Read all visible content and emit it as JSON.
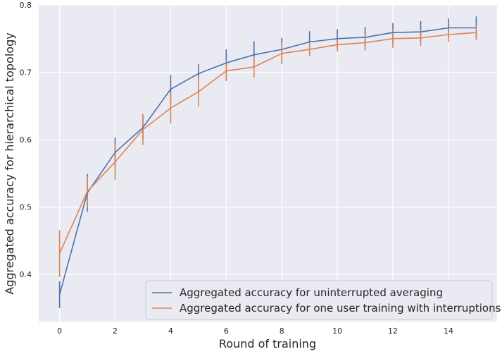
{
  "chart_data": {
    "type": "line",
    "xlabel": "Round of training",
    "ylabel": "Aggregated accuracy for hierarchical topology",
    "xlim": [
      -0.75,
      15.75
    ],
    "ylim": [
      0.33,
      0.8
    ],
    "xticks": [
      0,
      2,
      4,
      6,
      8,
      10,
      12,
      14
    ],
    "xtick_labels": [
      "0",
      "2",
      "4",
      "6",
      "8",
      "10",
      "12",
      "14"
    ],
    "yticks": [
      0.4,
      0.5,
      0.6,
      0.7,
      0.8
    ],
    "ytick_labels": [
      "0.4",
      "0.5",
      "0.6",
      "0.7",
      "0.8"
    ],
    "grid": true,
    "legend_position": "lower-right",
    "x": [
      0,
      1,
      2,
      3,
      4,
      5,
      6,
      7,
      8,
      9,
      10,
      11,
      12,
      13,
      14,
      15
    ],
    "series": [
      {
        "name": "Aggregated accuracy for uninterrupted averaging",
        "color": "#4c72b0",
        "values": [
          0.37,
          0.521,
          0.581,
          0.618,
          0.675,
          0.698,
          0.714,
          0.726,
          0.734,
          0.745,
          0.75,
          0.752,
          0.759,
          0.76,
          0.766,
          0.766
        ],
        "err": [
          0.02,
          0.028,
          0.022,
          0.018,
          0.021,
          0.014,
          0.02,
          0.02,
          0.017,
          0.016,
          0.014,
          0.015,
          0.014,
          0.016,
          0.014,
          0.017
        ]
      },
      {
        "name": "Aggregated accuracy for one user training with interruptions",
        "color": "#dd8452",
        "values": [
          0.431,
          0.523,
          0.567,
          0.615,
          0.647,
          0.671,
          0.702,
          0.708,
          0.728,
          0.734,
          0.741,
          0.744,
          0.75,
          0.751,
          0.756,
          0.759
        ],
        "err": [
          0.035,
          0.023,
          0.027,
          0.023,
          0.023,
          0.022,
          0.015,
          0.016,
          0.016,
          0.01,
          0.01,
          0.012,
          0.014,
          0.012,
          0.011,
          0.011
        ]
      }
    ]
  }
}
